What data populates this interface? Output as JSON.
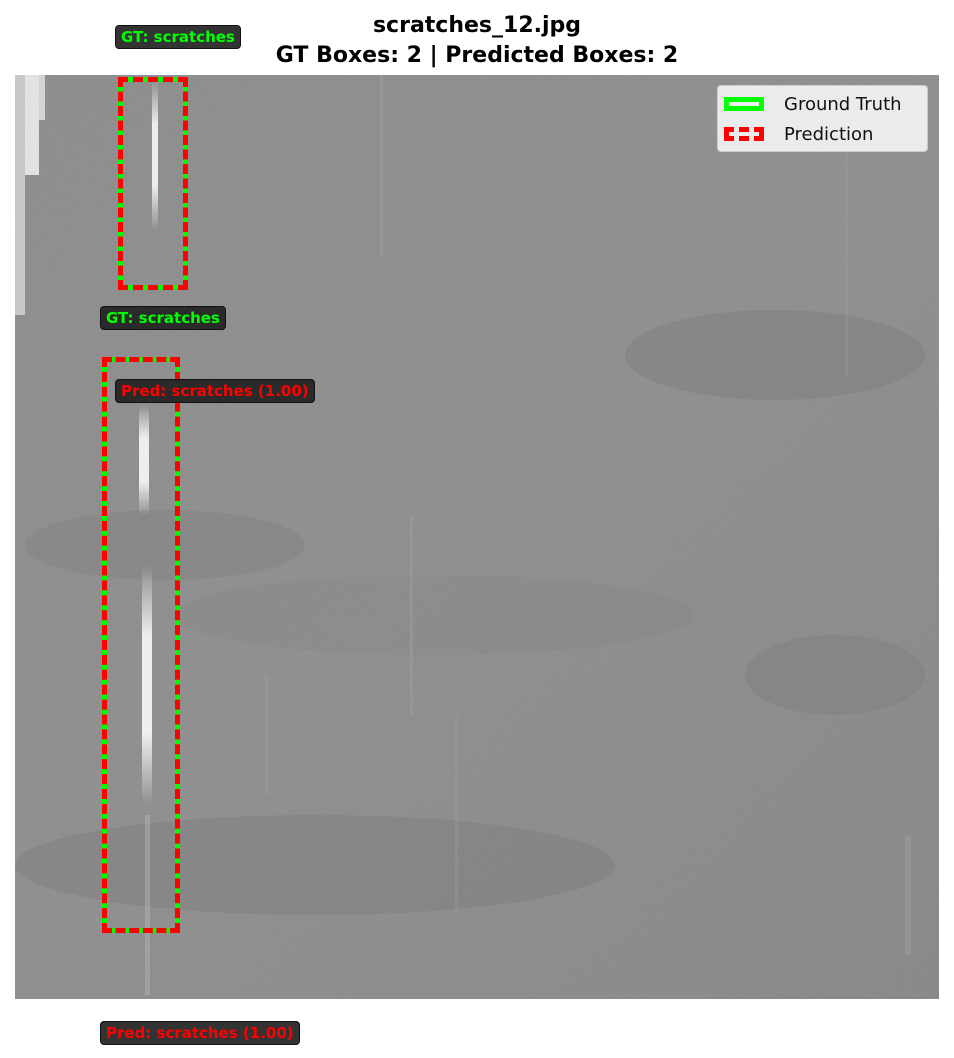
{
  "figure": {
    "title_line1": "scratches_12.jpg",
    "title_line2": "GT Boxes: 2 | Predicted Boxes: 2"
  },
  "legend": {
    "ground_truth": "Ground Truth",
    "prediction": "Prediction"
  },
  "colors": {
    "ground_truth": "#00ff00",
    "prediction": "#ff0000",
    "label_background": "#222222"
  },
  "annotations": {
    "gt_labels": [
      "GT: scratches",
      "GT: scratches"
    ],
    "pred_labels": [
      "Pred: scratches (1.00)",
      "Pred: scratches (1.00)"
    ]
  }
}
